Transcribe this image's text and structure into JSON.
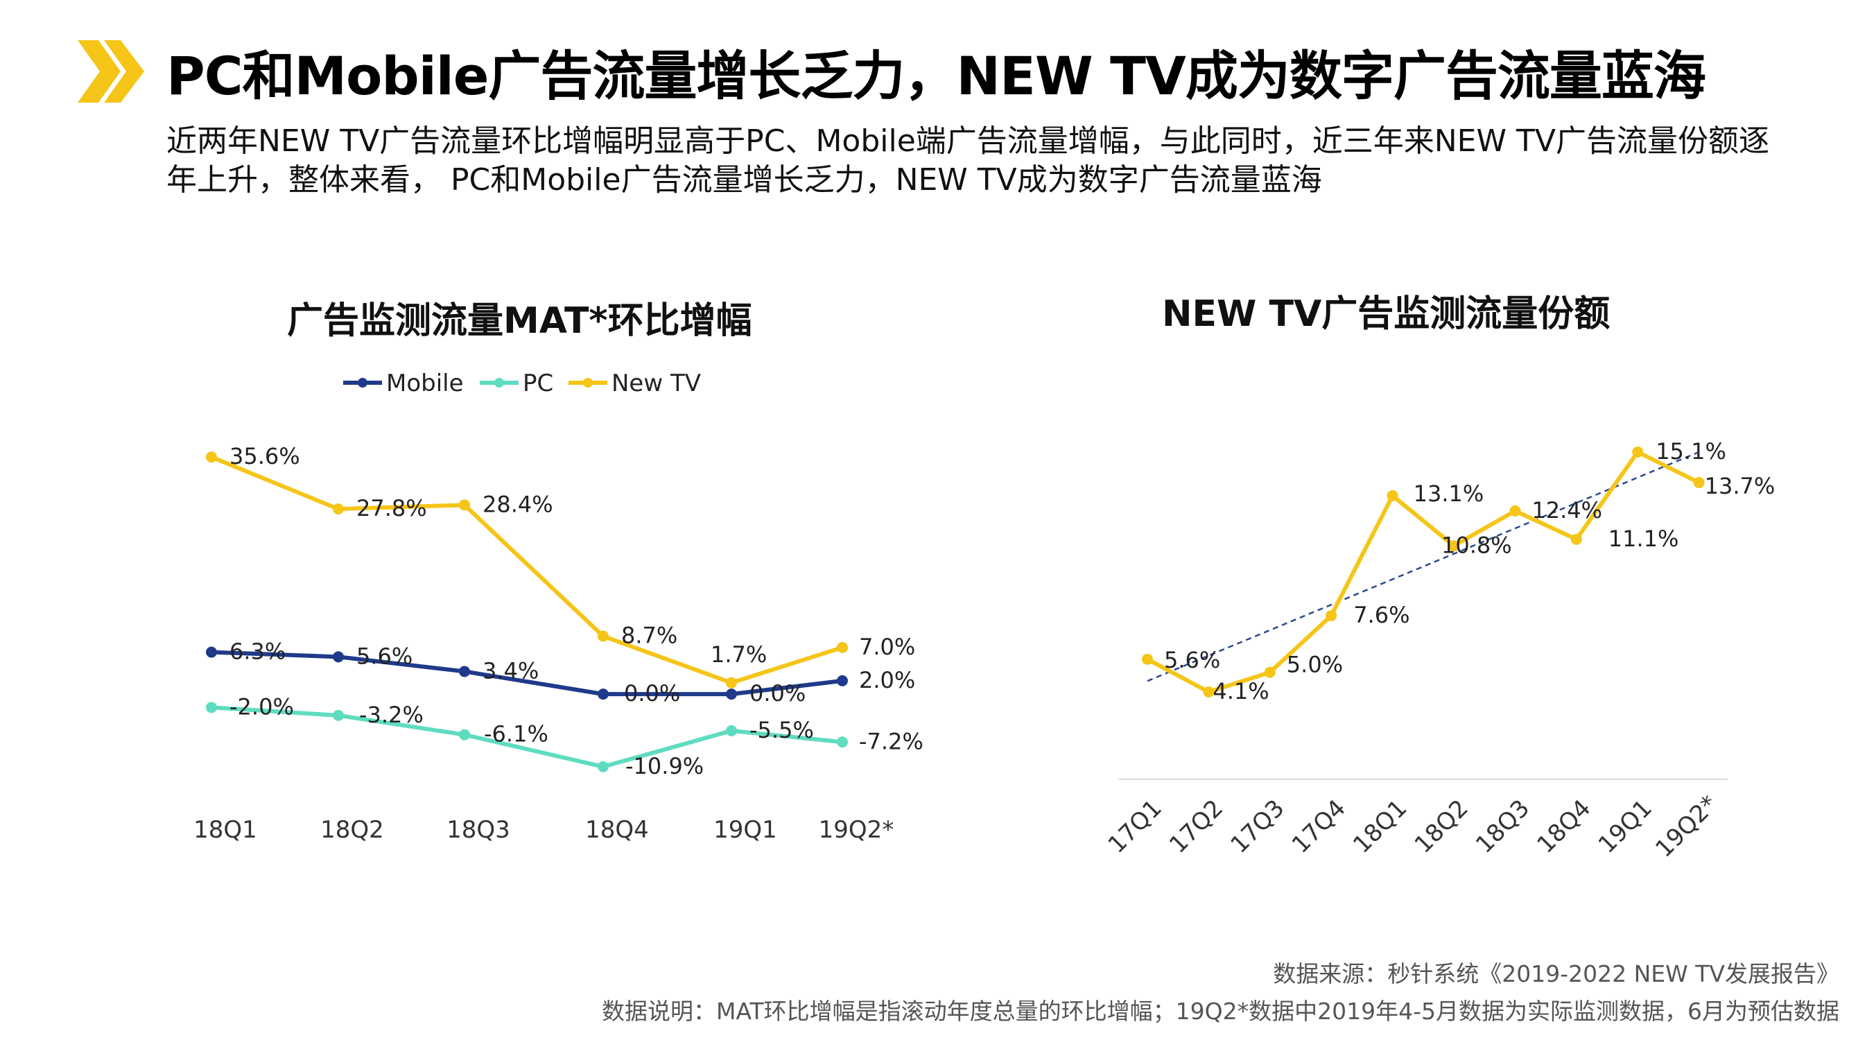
{
  "header": {
    "title": "PC和Mobile广告流量增长乏力，NEW TV成为数字广告流量蓝海",
    "subtitle": "近两年NEW TV广告流量环比增幅明显高于PC、Mobile端广告流量增幅，与此同时，近三年来NEW TV广告流量份额逐年上升，整体来看， PC和Mobile广告流量增长乏力，NEW TV成为数字广告流量蓝海",
    "accent_color": "#F5C518"
  },
  "chart_data": [
    {
      "type": "line",
      "title": "广告监测流量MAT*环比增幅",
      "categories": [
        "18Q1",
        "18Q2",
        "18Q3",
        "18Q4",
        "19Q1",
        "19Q2*"
      ],
      "series": [
        {
          "name": "Mobile",
          "color": "#1F3A8A",
          "values": [
            6.3,
            5.6,
            3.4,
            0.0,
            0.0,
            2.0
          ],
          "labels": [
            "6.3%",
            "5.6%",
            "3.4%",
            "0.0%",
            "0.0%",
            "2.0%"
          ]
        },
        {
          "name": "PC",
          "color": "#5FDCC0",
          "values": [
            -2.0,
            -3.2,
            -6.1,
            -10.9,
            -5.5,
            -7.2
          ],
          "labels": [
            "-2.0%",
            "-3.2%",
            "-6.1%",
            "-10.9%",
            "-5.5%",
            "-7.2%"
          ]
        },
        {
          "name": "New TV",
          "color": "#F5C518",
          "values": [
            35.6,
            27.8,
            28.4,
            8.7,
            1.7,
            7.0
          ],
          "labels": [
            "35.6%",
            "27.8%",
            "28.4%",
            "8.7%",
            "1.7%",
            "7.0%"
          ]
        }
      ],
      "legend": "top",
      "grid": false
    },
    {
      "type": "line",
      "title": "NEW TV广告监测流量份额",
      "categories": [
        "17Q1",
        "17Q2",
        "17Q3",
        "17Q4",
        "18Q1",
        "18Q2",
        "18Q3",
        "18Q4",
        "19Q1",
        "19Q2*"
      ],
      "series": [
        {
          "name": "NEW TV",
          "color": "#F5C518",
          "values": [
            5.6,
            4.1,
            5.0,
            7.6,
            13.1,
            10.8,
            12.4,
            11.1,
            15.1,
            13.7
          ],
          "labels": [
            "5.6%",
            "4.1%",
            "5.0%",
            "7.6%",
            "13.1%",
            "10.8%",
            "12.4%",
            "11.1%",
            "15.1%",
            "13.7%"
          ]
        }
      ],
      "trendline": {
        "style": "dashed",
        "color": "#2B4A8C"
      },
      "grid": false
    }
  ],
  "footer": {
    "source": "数据来源：秒针系统《2019-2022 NEW TV发展报告》",
    "note": "数据说明：MAT环比增幅是指滚动年度总量的环比增幅；19Q2*数据中2019年4-5月数据为实际监测数据，6月为预估数据"
  }
}
